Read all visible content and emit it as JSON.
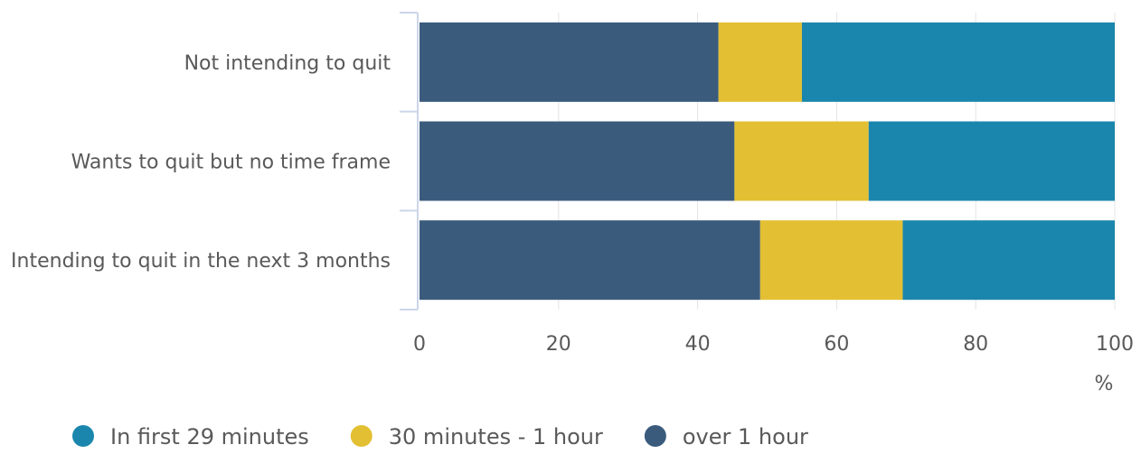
{
  "chart_data": {
    "type": "bar",
    "orientation": "horizontal",
    "stacked": true,
    "categories": [
      "Not intending to quit",
      "Wants to quit but no time frame",
      "Intending to quit in the next 3 months"
    ],
    "series": [
      {
        "name": "over 1 hour",
        "color": "#3b5b7d",
        "values": [
          43.0,
          45.3,
          49.0
        ]
      },
      {
        "name": "30 minutes - 1 hour",
        "color": "#e3c033",
        "values": [
          12.0,
          19.3,
          20.5
        ]
      },
      {
        "name": "In first 29 minutes",
        "color": "#1b86ad",
        "values": [
          45.0,
          35.4,
          30.5
        ]
      }
    ],
    "legend_order": [
      "In first 29 minutes",
      "30 minutes - 1 hour",
      "over 1 hour"
    ],
    "xlim": [
      0,
      100
    ],
    "xticks": [
      0,
      20,
      40,
      60,
      80,
      100
    ],
    "xunit": "%",
    "grid": true,
    "legend_position": "bottom-left"
  }
}
